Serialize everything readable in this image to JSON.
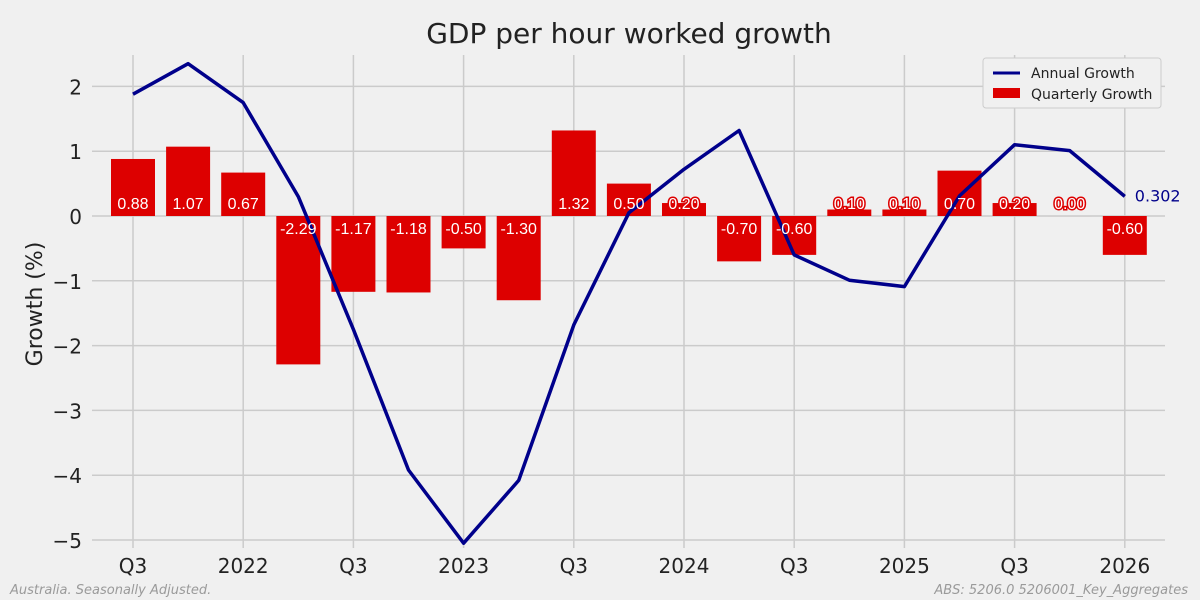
{
  "chart_data": {
    "type": "bar+line",
    "title": "GDP per hour worked growth",
    "ylabel": "Growth (%)",
    "xlabel": "",
    "ylim": [
      -5.15,
      2.5
    ],
    "yticks": [
      2,
      1,
      0,
      -1,
      -2,
      -3,
      -4,
      -5
    ],
    "ytick_labels": [
      "2",
      "1",
      "0",
      "−1",
      "−2",
      "−3",
      "−4",
      "−5"
    ],
    "xtick_labels": [
      "Q3",
      "2022",
      "Q3",
      "2023",
      "Q3",
      "2024",
      "Q3",
      "2025",
      "Q3",
      "2026"
    ],
    "xtick_index": [
      0,
      2,
      4,
      6,
      8,
      10,
      12,
      14,
      16,
      18
    ],
    "grid": true,
    "legend_position": "top-right",
    "series": [
      {
        "name": "Annual Growth",
        "type": "line",
        "color": "#00008b",
        "values": [
          1.88,
          2.35,
          1.75,
          0.3,
          -1.75,
          -3.92,
          -5.05,
          -4.08,
          -1.68,
          0.05,
          0.72,
          1.32,
          -0.6,
          -0.99,
          -1.09,
          0.31,
          1.1,
          1.01,
          0.302
        ]
      },
      {
        "name": "Quarterly Growth",
        "type": "bar",
        "color": "#dd0000",
        "values": [
          0.88,
          1.07,
          0.67,
          -2.29,
          -1.17,
          -1.18,
          -0.5,
          -1.3,
          1.32,
          0.5,
          0.2,
          -0.7,
          -0.6,
          0.1,
          0.1,
          0.7,
          0.2,
          0.0,
          -0.6
        ],
        "labels": [
          "0.88",
          "1.07",
          "0.67",
          "-2.29",
          "-1.17",
          "-1.18",
          "-0.50",
          "-1.30",
          "1.32",
          "0.50",
          "0.20",
          "-0.70",
          "-0.60",
          "0.10",
          "0.10",
          "0.70",
          "0.20",
          "0.00",
          "-0.60"
        ]
      }
    ],
    "end_annotation": "0.302",
    "annotation_color": "#00008b"
  },
  "footer": {
    "left": "Australia. Seasonally Adjusted.",
    "right": "ABS: 5206.0 5206001_Key_Aggregates"
  }
}
